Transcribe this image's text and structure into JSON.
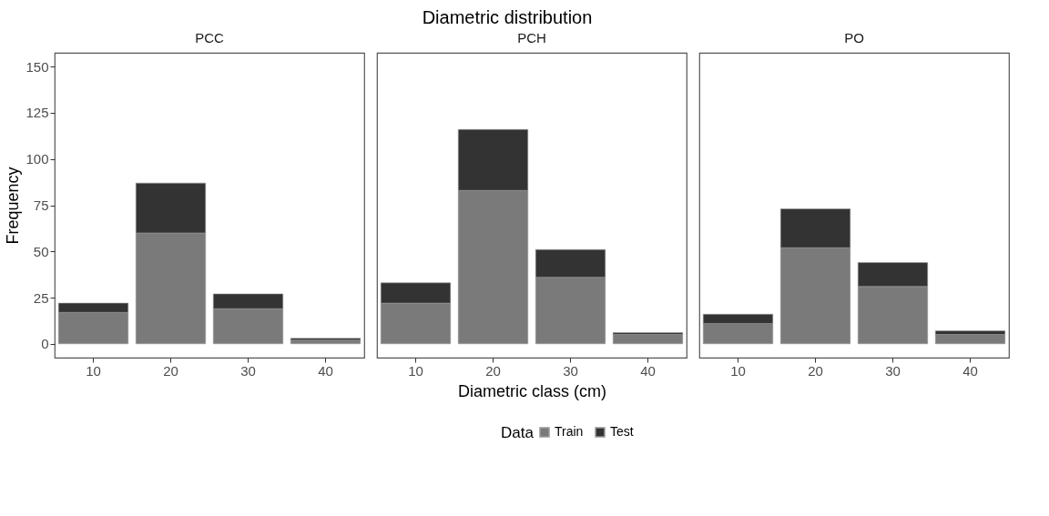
{
  "chart_data": [
    {
      "type": "bar",
      "title": "PCC",
      "annotations": [
        "Diametric distribution"
      ],
      "ylabel": "Frequency",
      "categories": [
        "10",
        "20",
        "30",
        "40"
      ],
      "stacked": true,
      "legend": "bottom",
      "legend_title": "Data",
      "grid": false,
      "ylim": [
        -7.5,
        157.5
      ],
      "yticks": [
        0,
        25,
        50,
        75,
        100,
        125,
        150
      ],
      "series": [
        {
          "name": "Train",
          "color": "#7a7a7a",
          "values": [
            17,
            60,
            19,
            2
          ]
        },
        {
          "name": "Test",
          "color": "#333333",
          "values": [
            5,
            27,
            8,
            1
          ]
        }
      ]
    },
    {
      "type": "bar",
      "title": "PCH",
      "xlabel": "Diametric class (cm)",
      "categories": [
        "10",
        "20",
        "30",
        "40"
      ],
      "stacked": true,
      "grid": false,
      "tick_labels": "x",
      "ylim": [
        -7.5,
        157.5
      ],
      "yticks": [
        0,
        25,
        50,
        75,
        100,
        125,
        150
      ],
      "series": [
        {
          "name": "Train",
          "color": "#7a7a7a",
          "values": [
            22,
            83,
            36,
            5
          ]
        },
        {
          "name": "Test",
          "color": "#333333",
          "values": [
            11,
            33,
            15,
            1
          ]
        }
      ]
    },
    {
      "type": "bar",
      "title": "PO",
      "categories": [
        "10",
        "20",
        "30",
        "40"
      ],
      "stacked": true,
      "grid": false,
      "tick_labels": "x",
      "ylim": [
        -7.5,
        157.5
      ],
      "yticks": [
        0,
        25,
        50,
        75,
        100,
        125,
        150
      ],
      "series": [
        {
          "name": "Train",
          "color": "#7a7a7a",
          "values": [
            11,
            52,
            31,
            5
          ]
        },
        {
          "name": "Test",
          "color": "#333333",
          "values": [
            5,
            21,
            13,
            2
          ]
        }
      ]
    }
  ]
}
